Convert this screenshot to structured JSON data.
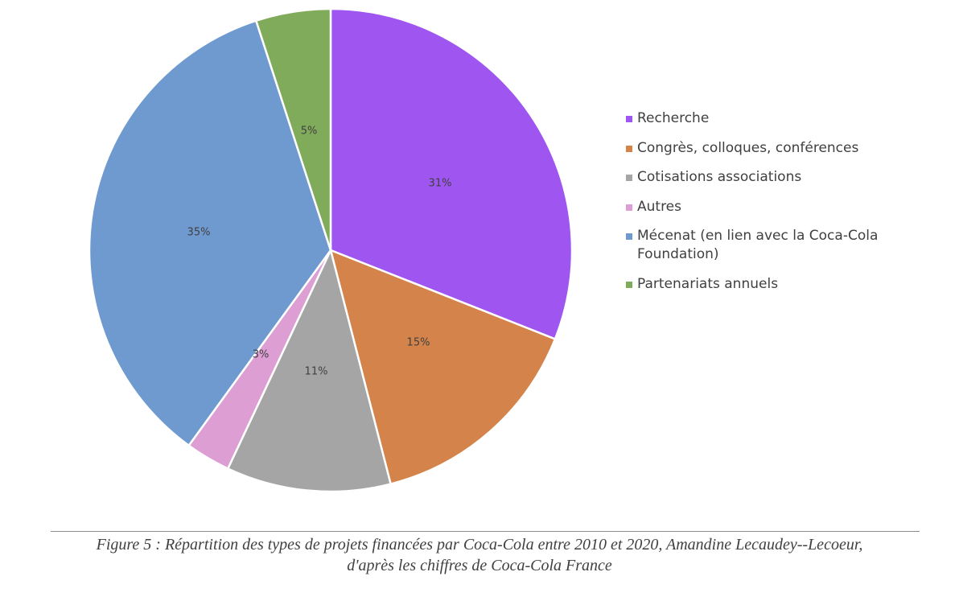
{
  "chart_data": {
    "type": "pie",
    "slices": [
      {
        "label": "Recherche",
        "value": 31,
        "value_label": "31%",
        "color": "#9f55f0"
      },
      {
        "label": "Congrès, colloques, conférences",
        "value": 15,
        "value_label": "15%",
        "color": "#d4844a"
      },
      {
        "label": "Cotisations associations",
        "value": 11,
        "value_label": "11%",
        "color": "#a5a5a5"
      },
      {
        "label": "Autres",
        "value": 3,
        "value_label": "3%",
        "color": "#dd9ed4"
      },
      {
        "label": "Mécenat (en lien avec la Coca-Cola Foundation)",
        "value": 35,
        "value_label": "35%",
        "color": "#6e9ad0"
      },
      {
        "label": "Partenariats annuels",
        "value": 5,
        "value_label": "5%",
        "color": "#80ab5a"
      }
    ],
    "legend_position": "right",
    "start_angle": "12 o'clock, clockwise"
  },
  "caption": {
    "line1": "Figure 5 : Répartition des types de projets financées par Coca-Cola entre 2010 et 2020, Amandine Lecaudey--Lecoeur,",
    "line2": "d'après les chiffres de Coca-Cola France"
  }
}
